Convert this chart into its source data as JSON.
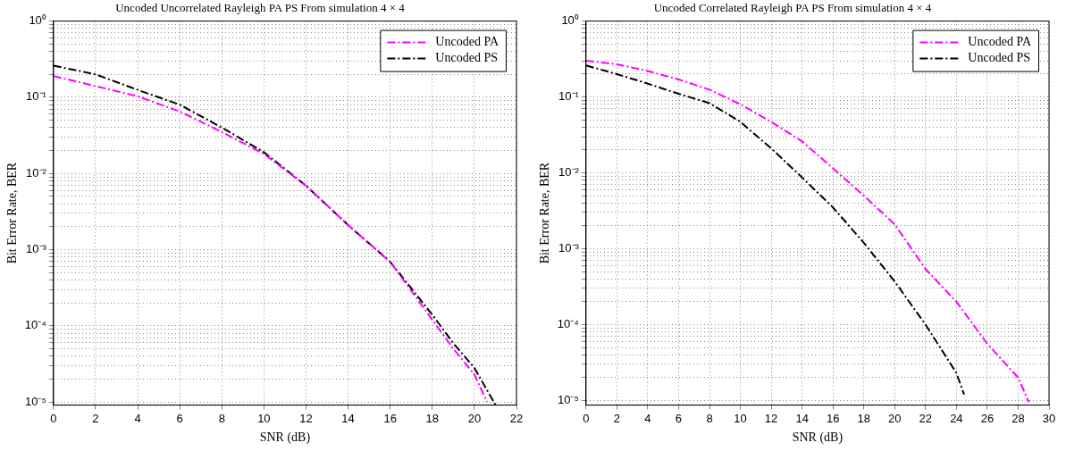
{
  "chart_data": [
    {
      "type": "line",
      "title": "Uncoded Uncorrelated Rayleigh PA PS From simulation 4 × 4",
      "xlabel": "SNR (dB)",
      "ylabel": "Bit Error Rate, BER",
      "log": "y",
      "grid": true,
      "legend": "top right",
      "line_style": "dashed",
      "xlim": [
        0,
        22
      ],
      "xticks": [
        0,
        2,
        4,
        6,
        8,
        10,
        12,
        14,
        16,
        18,
        20,
        22
      ],
      "ylim": [
        9.1e-06,
        1
      ],
      "yticks": [
        {
          "value": 1,
          "label": "10⁰"
        },
        {
          "value": 0.9,
          "label": null
        },
        {
          "value": 0.8,
          "label": null
        },
        {
          "value": 0.7,
          "label": null
        },
        {
          "value": 0.6,
          "label": null
        },
        {
          "value": 0.5,
          "label": null
        },
        {
          "value": 0.4,
          "label": null
        },
        {
          "value": 0.3,
          "label": null
        },
        {
          "value": 0.2,
          "label": null
        },
        {
          "value": 0.1,
          "label": "10⁻¹"
        },
        {
          "value": 0.09,
          "label": null
        },
        {
          "value": 0.08,
          "label": null
        },
        {
          "value": 0.07,
          "label": null
        },
        {
          "value": 0.06,
          "label": null
        },
        {
          "value": 0.05,
          "label": null
        },
        {
          "value": 0.04,
          "label": null
        },
        {
          "value": 0.03,
          "label": null
        },
        {
          "value": 0.02,
          "label": null
        },
        {
          "value": 0.01,
          "label": "10⁻²"
        },
        {
          "value": 0.009,
          "label": null
        },
        {
          "value": 0.008,
          "label": null
        },
        {
          "value": 0.007,
          "label": null
        },
        {
          "value": 0.006,
          "label": null
        },
        {
          "value": 0.005,
          "label": null
        },
        {
          "value": 0.004,
          "label": null
        },
        {
          "value": 0.003,
          "label": null
        },
        {
          "value": 0.002,
          "label": null
        },
        {
          "value": 0.001,
          "label": "10⁻³"
        },
        {
          "value": 0.0009,
          "label": null
        },
        {
          "value": 0.0008,
          "label": null
        },
        {
          "value": 0.0007,
          "label": null
        },
        {
          "value": 0.0006,
          "label": null
        },
        {
          "value": 0.0005,
          "label": null
        },
        {
          "value": 0.0004,
          "label": null
        },
        {
          "value": 0.0003,
          "label": null
        },
        {
          "value": 0.0002,
          "label": null
        },
        {
          "value": 0.0001,
          "label": "10⁻⁴"
        },
        {
          "value": 9e-05,
          "label": null
        },
        {
          "value": 8e-05,
          "label": null
        },
        {
          "value": 7e-05,
          "label": null
        },
        {
          "value": 6e-05,
          "label": null
        },
        {
          "value": 5e-05,
          "label": null
        },
        {
          "value": 4e-05,
          "label": null
        },
        {
          "value": 3e-05,
          "label": null
        },
        {
          "value": 2e-05,
          "label": null
        },
        {
          "value": 1e-05,
          "label": "10⁻⁵"
        }
      ],
      "series": [
        {
          "name": "Uncoded PA",
          "color": "#ff00ff",
          "x": [
            0,
            2,
            4,
            6,
            8,
            10,
            12,
            14,
            16,
            18,
            19,
            20,
            20.6
          ],
          "values": [
            0.19,
            0.14,
            0.103,
            0.065,
            0.035,
            0.018,
            0.0069,
            0.0021,
            0.00069,
            0.00012,
            5e-05,
            2.3e-05,
            1e-05
          ]
        },
        {
          "name": "Uncoded PS",
          "color": "#000000",
          "x": [
            0,
            2,
            4,
            6,
            8,
            10,
            12,
            14,
            16,
            18,
            19,
            20,
            21
          ],
          "values": [
            0.26,
            0.2,
            0.125,
            0.08,
            0.04,
            0.019,
            0.0069,
            0.0021,
            0.00069,
            0.00014,
            5.9e-05,
            2.8e-05,
            9.2e-06
          ]
        }
      ]
    },
    {
      "type": "line",
      "title": "Uncoded Correlated Rayleigh PA PS From simulation 4 × 4",
      "xlabel": "SNR (dB)",
      "ylabel": "Bit Error Rate, BER",
      "log": "y",
      "grid": true,
      "legend": "top right",
      "line_style": "dashed",
      "xlim": [
        0,
        30
      ],
      "xticks": [
        0,
        2,
        4,
        6,
        8,
        10,
        12,
        14,
        16,
        18,
        20,
        22,
        24,
        26,
        28,
        30
      ],
      "ylim": [
        8.7e-06,
        1
      ],
      "yticks": [
        {
          "value": 1,
          "label": "10⁰"
        },
        {
          "value": 0.9,
          "label": null
        },
        {
          "value": 0.8,
          "label": null
        },
        {
          "value": 0.7,
          "label": null
        },
        {
          "value": 0.6,
          "label": null
        },
        {
          "value": 0.5,
          "label": null
        },
        {
          "value": 0.4,
          "label": null
        },
        {
          "value": 0.3,
          "label": null
        },
        {
          "value": 0.2,
          "label": null
        },
        {
          "value": 0.1,
          "label": "10⁻¹"
        },
        {
          "value": 0.09,
          "label": null
        },
        {
          "value": 0.08,
          "label": null
        },
        {
          "value": 0.07,
          "label": null
        },
        {
          "value": 0.06,
          "label": null
        },
        {
          "value": 0.05,
          "label": null
        },
        {
          "value": 0.04,
          "label": null
        },
        {
          "value": 0.03,
          "label": null
        },
        {
          "value": 0.02,
          "label": null
        },
        {
          "value": 0.01,
          "label": "10⁻²"
        },
        {
          "value": 0.009,
          "label": null
        },
        {
          "value": 0.008,
          "label": null
        },
        {
          "value": 0.007,
          "label": null
        },
        {
          "value": 0.006,
          "label": null
        },
        {
          "value": 0.005,
          "label": null
        },
        {
          "value": 0.004,
          "label": null
        },
        {
          "value": 0.003,
          "label": null
        },
        {
          "value": 0.002,
          "label": null
        },
        {
          "value": 0.001,
          "label": "10⁻³"
        },
        {
          "value": 0.0009,
          "label": null
        },
        {
          "value": 0.0008,
          "label": null
        },
        {
          "value": 0.0007,
          "label": null
        },
        {
          "value": 0.0006,
          "label": null
        },
        {
          "value": 0.0005,
          "label": null
        },
        {
          "value": 0.0004,
          "label": null
        },
        {
          "value": 0.0003,
          "label": null
        },
        {
          "value": 0.0002,
          "label": null
        },
        {
          "value": 0.0001,
          "label": "10⁻⁴"
        },
        {
          "value": 9e-05,
          "label": null
        },
        {
          "value": 8e-05,
          "label": null
        },
        {
          "value": 7e-05,
          "label": null
        },
        {
          "value": 6e-05,
          "label": null
        },
        {
          "value": 5e-05,
          "label": null
        },
        {
          "value": 4e-05,
          "label": null
        },
        {
          "value": 3e-05,
          "label": null
        },
        {
          "value": 2e-05,
          "label": null
        },
        {
          "value": 1e-05,
          "label": "10⁻⁵"
        }
      ],
      "series": [
        {
          "name": "Uncoded PA",
          "color": "#ff00ff",
          "x": [
            0,
            2,
            4,
            6,
            8,
            10,
            12,
            14,
            16,
            18,
            20,
            22,
            24,
            26,
            28,
            28.7
          ],
          "values": [
            0.3,
            0.27,
            0.22,
            0.17,
            0.125,
            0.08,
            0.047,
            0.026,
            0.0115,
            0.005,
            0.0021,
            0.00054,
            0.0002,
            5.6e-05,
            2e-05,
            9.5e-06
          ]
        },
        {
          "name": "Uncoded PS",
          "color": "#000000",
          "x": [
            0,
            2,
            4,
            6,
            8,
            10,
            12,
            14,
            16,
            18,
            20,
            22,
            24,
            24.5
          ],
          "values": [
            0.26,
            0.2,
            0.15,
            0.11,
            0.083,
            0.047,
            0.021,
            0.0087,
            0.0035,
            0.0012,
            0.00037,
            0.0001,
            2.3e-05,
            1.2e-05
          ]
        }
      ]
    }
  ]
}
